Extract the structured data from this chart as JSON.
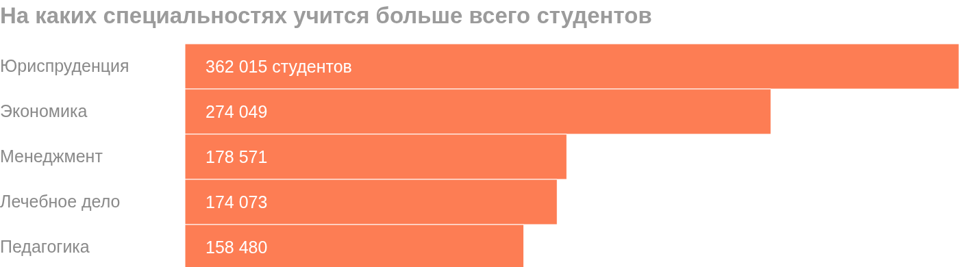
{
  "chart_data": {
    "type": "bar",
    "orientation": "horizontal",
    "title": "На каких специальностях учится больше всего студентов",
    "categories": [
      "Юриспруденция",
      "Экономика",
      "Менеджмент",
      "Лечебное дело",
      "Педагогика"
    ],
    "values": [
      362015,
      274049,
      178571,
      174073,
      158480
    ],
    "value_labels": [
      "362 015 студентов",
      "274 049",
      "178 571",
      "174 073",
      "158 480"
    ],
    "color": "#fd7d54",
    "tick_labels": "y",
    "grid": false,
    "legend": false
  }
}
